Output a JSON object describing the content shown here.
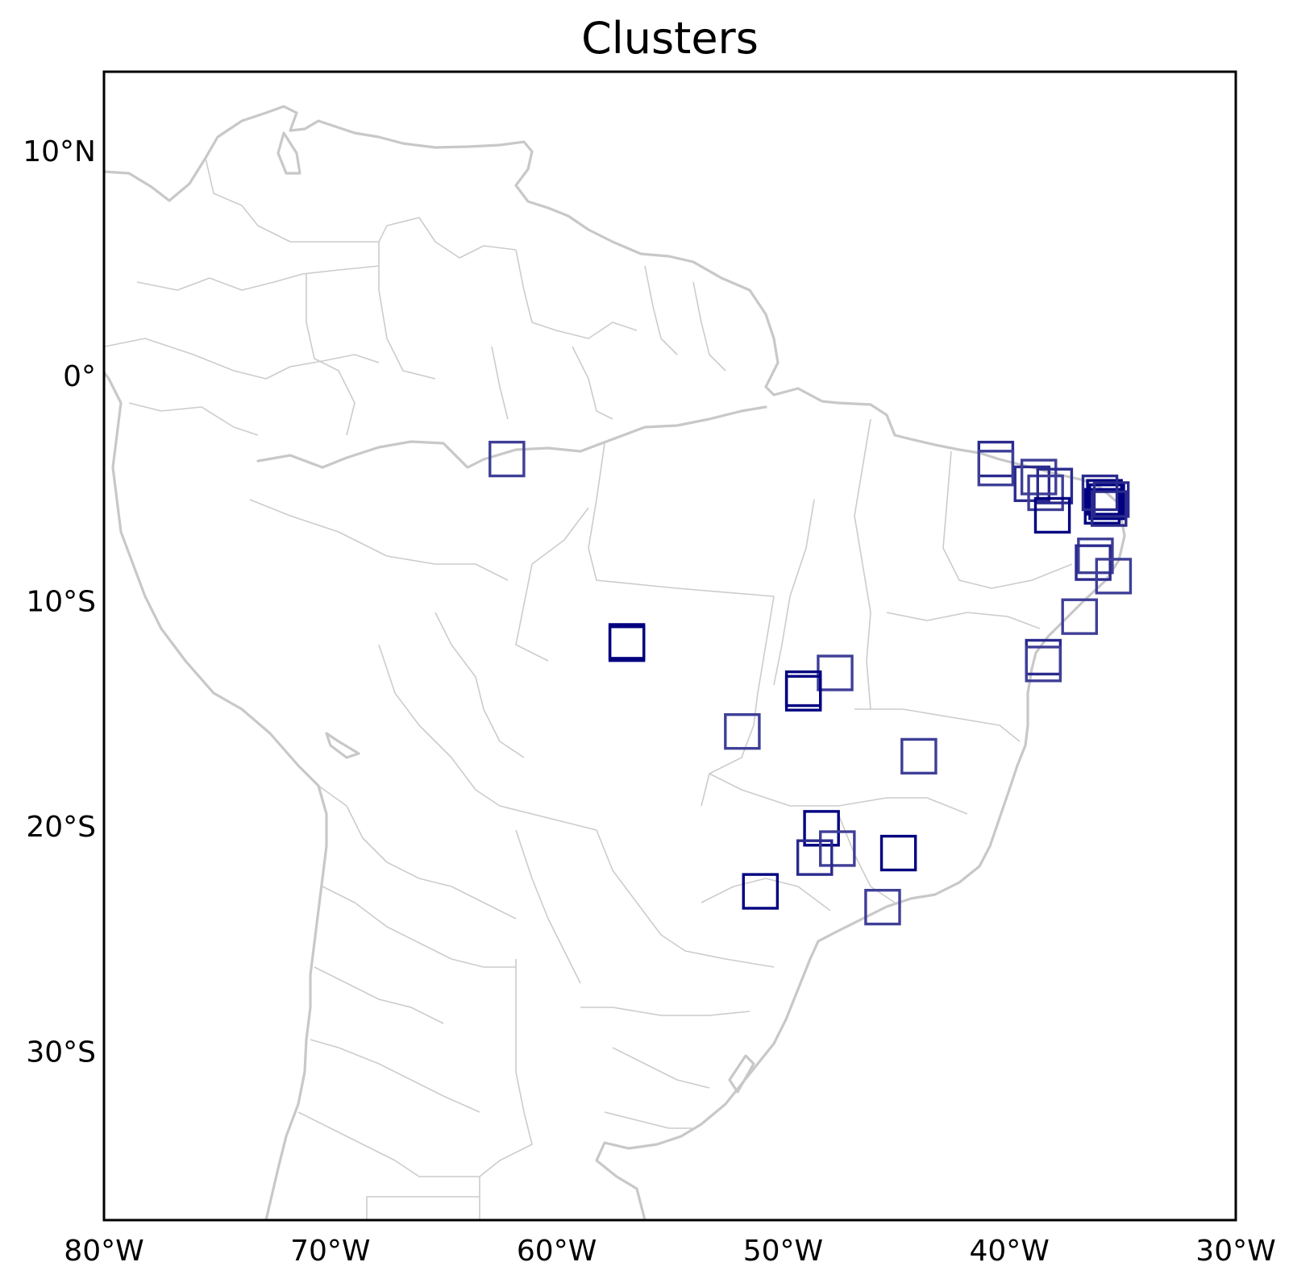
{
  "chart_data": {
    "type": "scatter",
    "title": "Clusters",
    "projection": "PlateCarree",
    "xlim": [
      -80,
      -30
    ],
    "ylim": [
      -37.5,
      13.5
    ],
    "x_ticks": [
      {
        "value": -80,
        "label": "80°W"
      },
      {
        "value": -70,
        "label": "70°W"
      },
      {
        "value": -60,
        "label": "60°W"
      },
      {
        "value": -50,
        "label": "50°W"
      },
      {
        "value": -40,
        "label": "40°W"
      },
      {
        "value": -30,
        "label": "30°W"
      }
    ],
    "y_ticks": [
      {
        "value": 10,
        "label": "10°N"
      },
      {
        "value": 0,
        "label": "0°"
      },
      {
        "value": -10,
        "label": "10°S"
      },
      {
        "value": -20,
        "label": "20°S"
      },
      {
        "value": -30,
        "label": "30°S"
      }
    ],
    "box_size_deg": 1.5,
    "marker_colors": {
      "dark": "#000080",
      "medium": "#2a2a8e",
      "light": "#3f3f98"
    },
    "clusters": [
      {
        "lon": -62.2,
        "lat": -3.7,
        "tone": "light"
      },
      {
        "lon": -56.9,
        "lat": -11.8,
        "tone": "dark"
      },
      {
        "lon": -56.9,
        "lat": -11.9,
        "tone": "dark"
      },
      {
        "lon": -47.7,
        "lat": -13.2,
        "tone": "light"
      },
      {
        "lon": -49.1,
        "lat": -13.9,
        "tone": "dark"
      },
      {
        "lon": -49.1,
        "lat": -14.1,
        "tone": "dark"
      },
      {
        "lon": -51.8,
        "lat": -15.8,
        "tone": "light"
      },
      {
        "lon": -44.0,
        "lat": -16.9,
        "tone": "light"
      },
      {
        "lon": -48.3,
        "lat": -20.1,
        "tone": "dark"
      },
      {
        "lon": -47.6,
        "lat": -21.0,
        "tone": "light"
      },
      {
        "lon": -48.6,
        "lat": -21.4,
        "tone": "medium"
      },
      {
        "lon": -44.9,
        "lat": -21.2,
        "tone": "dark"
      },
      {
        "lon": -51.0,
        "lat": -22.9,
        "tone": "dark"
      },
      {
        "lon": -45.6,
        "lat": -23.6,
        "tone": "light"
      },
      {
        "lon": -40.6,
        "lat": -3.7,
        "tone": "medium"
      },
      {
        "lon": -40.6,
        "lat": -4.1,
        "tone": "light"
      },
      {
        "lon": -39.0,
        "lat": -4.8,
        "tone": "medium"
      },
      {
        "lon": -38.7,
        "lat": -4.5,
        "tone": "light"
      },
      {
        "lon": -38.4,
        "lat": -5.2,
        "tone": "light"
      },
      {
        "lon": -38.0,
        "lat": -4.9,
        "tone": "medium"
      },
      {
        "lon": -38.1,
        "lat": -6.2,
        "tone": "dark"
      },
      {
        "lon": -35.8,
        "lat": -5.4,
        "tone": "dark"
      },
      {
        "lon": -35.7,
        "lat": -5.6,
        "tone": "dark"
      },
      {
        "lon": -35.9,
        "lat": -5.8,
        "tone": "dark"
      },
      {
        "lon": -35.5,
        "lat": -5.5,
        "tone": "medium"
      },
      {
        "lon": -36.0,
        "lat": -5.2,
        "tone": "medium"
      },
      {
        "lon": -35.6,
        "lat": -5.9,
        "tone": "medium"
      },
      {
        "lon": -36.2,
        "lat": -8.0,
        "tone": "light"
      },
      {
        "lon": -36.3,
        "lat": -8.3,
        "tone": "medium"
      },
      {
        "lon": -35.4,
        "lat": -8.9,
        "tone": "light"
      },
      {
        "lon": -36.9,
        "lat": -10.7,
        "tone": "light"
      },
      {
        "lon": -38.5,
        "lat": -12.5,
        "tone": "medium"
      },
      {
        "lon": -38.5,
        "lat": -12.8,
        "tone": "light"
      }
    ]
  }
}
